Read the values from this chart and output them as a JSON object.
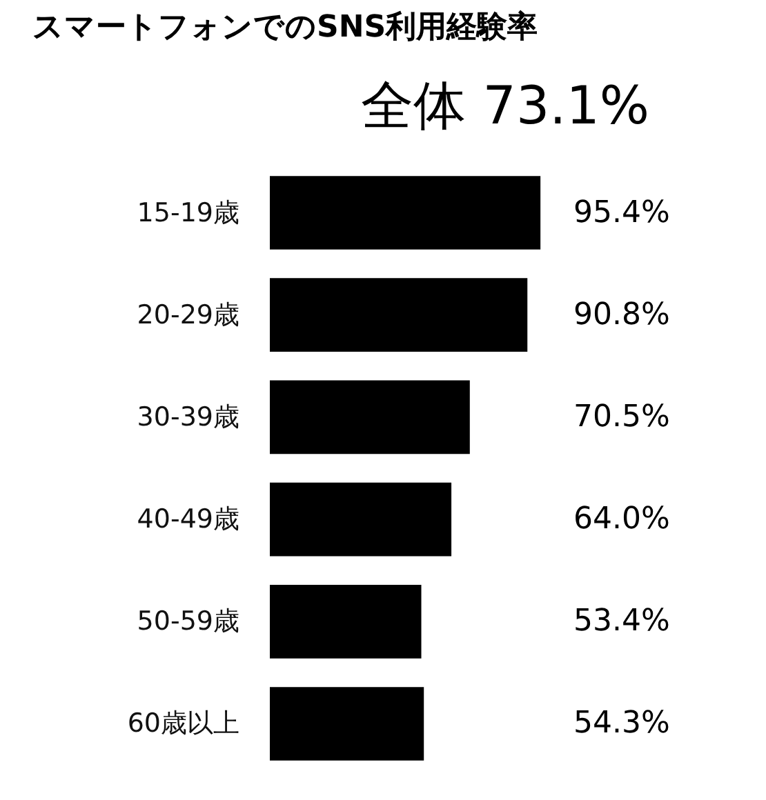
{
  "chart_data": {
    "type": "bar",
    "orientation": "horizontal",
    "title": "スマートフォンでのSNS利用経験率",
    "annotations": [
      "全体 73.1%"
    ],
    "categories": [
      "15-19歳",
      "20-29歳",
      "30-39歳",
      "40-49歳",
      "50-59歳",
      "60歳以上"
    ],
    "values": [
      95.4,
      90.8,
      70.5,
      64.0,
      53.4,
      54.3
    ],
    "value_labels": [
      "95.4%",
      "90.8%",
      "70.5%",
      "64.0%",
      "53.4%",
      "54.3%"
    ],
    "color": "#000000",
    "grid": false,
    "tick_labels": "y"
  }
}
